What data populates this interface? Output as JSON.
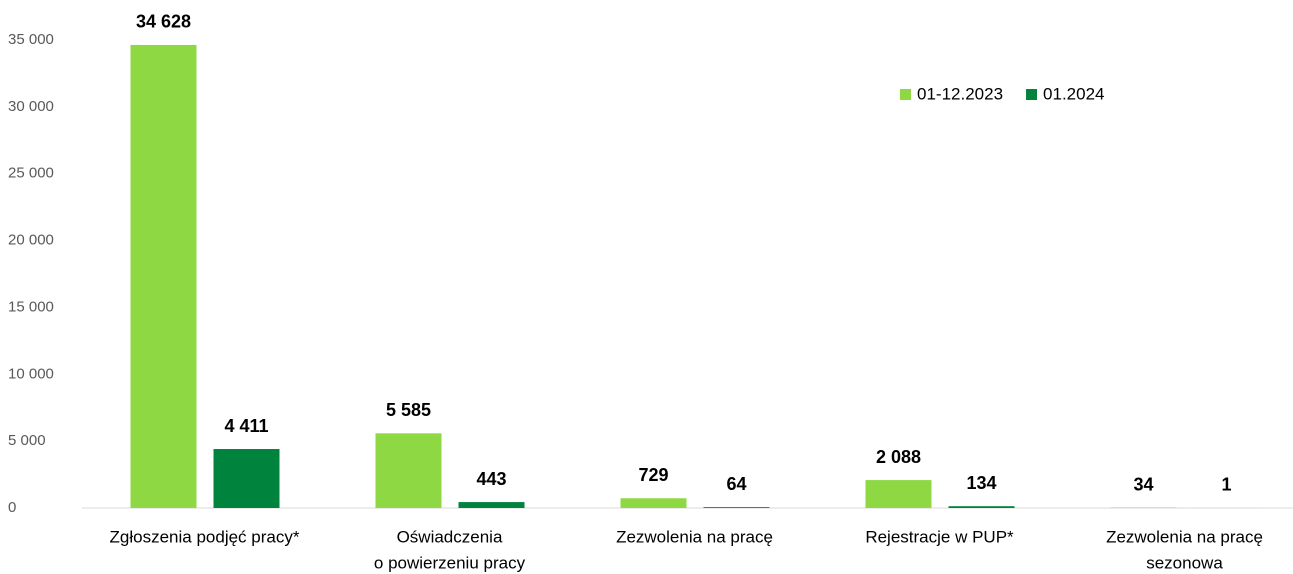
{
  "chart_data": {
    "type": "bar",
    "categories": [
      [
        "Zgłoszenia podjęć pracy*"
      ],
      [
        "Oświadczenia",
        "o powierzeniu pracy"
      ],
      [
        "Zezwolenia na pracę"
      ],
      [
        "Rejestracje w PUP*"
      ],
      [
        "Zezwolenia na pracę",
        "sezonowa"
      ]
    ],
    "series": [
      {
        "name": "01-12.2023",
        "color": "#8ed843",
        "values": [
          34628,
          5585,
          729,
          2088,
          34
        ],
        "value_labels": [
          "34 628",
          "5 585",
          "729",
          "2 088",
          "34"
        ]
      },
      {
        "name": "01.2024",
        "color": "#00843d",
        "values": [
          4411,
          443,
          64,
          134,
          1
        ],
        "value_labels": [
          "4 411",
          "443",
          "64",
          "134",
          "1"
        ]
      }
    ],
    "ylim": [
      0,
      35000
    ],
    "yticks": [
      0,
      {
        "value": 5000,
        "label": "5 000"
      },
      {
        "value": 10000,
        "label": "10 000"
      },
      {
        "value": 15000,
        "label": "15 000"
      },
      {
        "value": 20000,
        "label": "20 000"
      },
      {
        "value": 25000,
        "label": "25 000"
      },
      {
        "value": 30000,
        "label": "30 000"
      },
      {
        "value": 35000,
        "label": "35 000"
      }
    ],
    "legend": "top-right"
  }
}
